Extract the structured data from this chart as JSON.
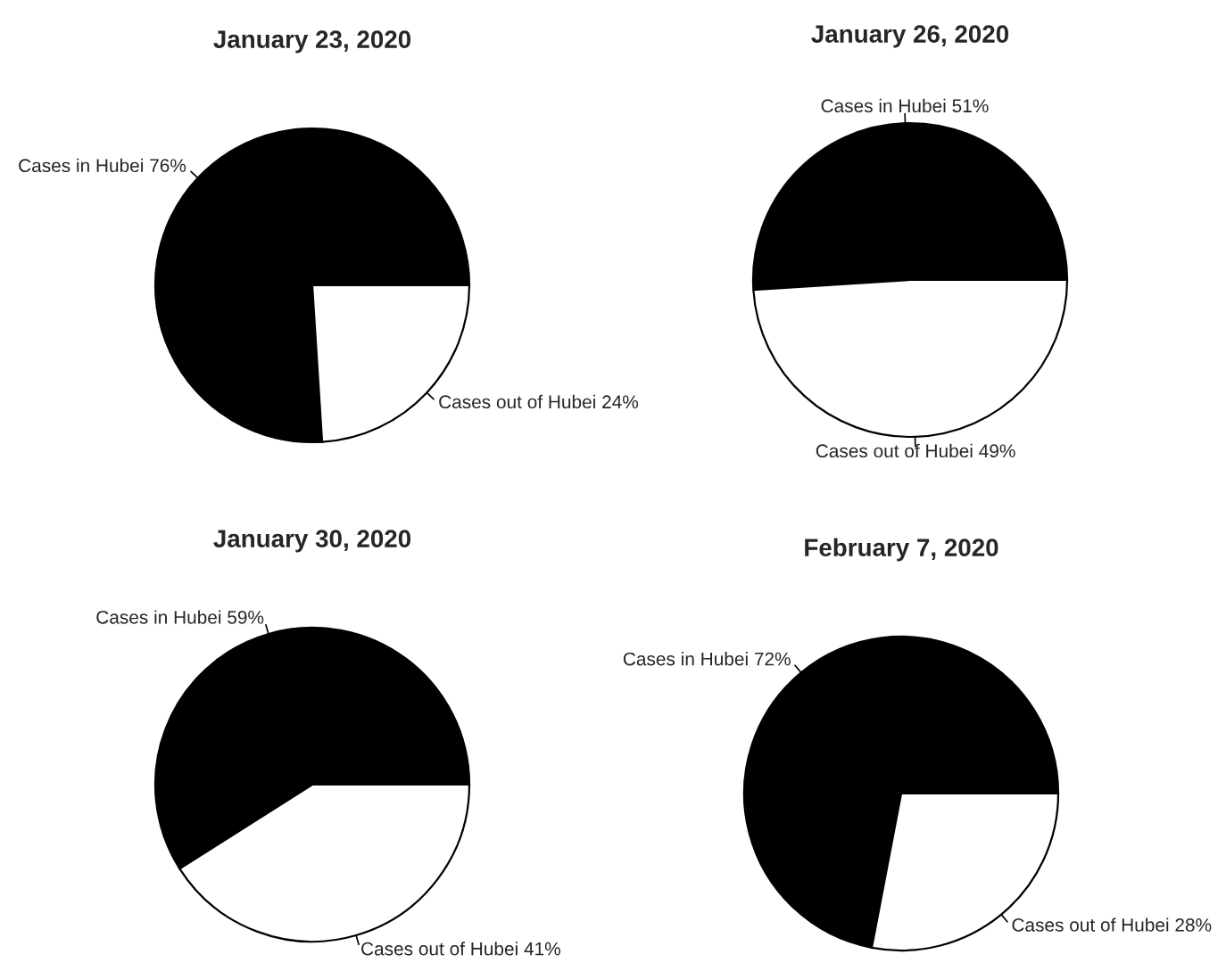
{
  "chart_data": [
    {
      "type": "pie",
      "title": "January 23, 2020",
      "categories": [
        "Cases in Hubei 76%",
        "Cases out of Hubei 24%"
      ],
      "values": [
        76,
        24
      ],
      "colors": [
        "#000000",
        "#ffffff"
      ]
    },
    {
      "type": "pie",
      "title": "January 26, 2020",
      "categories": [
        "Cases in Hubei 51%",
        "Cases out of Hubei 49%"
      ],
      "values": [
        51,
        49
      ],
      "colors": [
        "#000000",
        "#ffffff"
      ]
    },
    {
      "type": "pie",
      "title": "January 30, 2020",
      "categories": [
        "Cases in Hubei 59%",
        "Cases out of Hubei 41%"
      ],
      "values": [
        59,
        41
      ],
      "colors": [
        "#000000",
        "#ffffff"
      ]
    },
    {
      "type": "pie",
      "title": "February 7, 2020",
      "categories": [
        "Cases in Hubei 72%",
        "Cases out of Hubei 28%"
      ],
      "values": [
        72,
        28
      ],
      "colors": [
        "#000000",
        "#ffffff"
      ]
    }
  ]
}
